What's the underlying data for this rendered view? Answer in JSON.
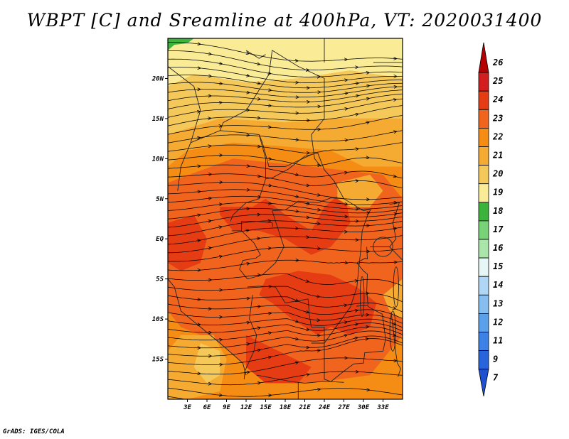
{
  "title": "WBPT [C] and Sreamline at 400hPa, VT: 2020031400",
  "footer": "GrADS: IGES/COLA",
  "map": {
    "lon_range": [
      0,
      36
    ],
    "lat_range": [
      -20,
      25
    ],
    "lat_ticks": [
      "20N",
      "15N",
      "10N",
      "5N",
      "EQ",
      "5S",
      "10S",
      "15S"
    ],
    "lon_ticks": [
      "3E",
      "6E",
      "9E",
      "12E",
      "15E",
      "18E",
      "21E",
      "24E",
      "27E",
      "30E",
      "33E"
    ]
  },
  "colorbar": {
    "labels": [
      "26",
      "25",
      "24",
      "23",
      "22",
      "21",
      "20",
      "19",
      "18",
      "17",
      "16",
      "15",
      "14",
      "13",
      "12",
      "11",
      "9",
      "7"
    ],
    "colors": [
      "#b40000",
      "#d21e1e",
      "#e63c14",
      "#f0641e",
      "#f58c14",
      "#f5aa32",
      "#f5c85a",
      "#faeb96",
      "#3cb43c",
      "#78d278",
      "#aae6aa",
      "#e6f5f5",
      "#afd7f5",
      "#87bef0",
      "#5aa0eb",
      "#3c82e6",
      "#2864dc",
      "#1e50d2"
    ]
  },
  "field": {
    "colors": {
      "c19": "#faeb96",
      "c20": "#f5c85a",
      "c21": "#f5aa32",
      "c22": "#f58c14",
      "c23": "#f0641e",
      "c24": "#e63c14",
      "c17": "#3cb43c"
    },
    "regions": [
      {
        "level": "c19",
        "pts": [
          [
            0,
            25
          ],
          [
            36,
            25
          ],
          [
            36,
            20
          ],
          [
            28,
            21
          ],
          [
            20,
            20
          ],
          [
            12,
            19.5
          ],
          [
            4,
            20.5
          ],
          [
            0,
            19
          ]
        ]
      },
      {
        "level": "c20",
        "pts": [
          [
            0,
            19
          ],
          [
            4,
            20.5
          ],
          [
            12,
            19.5
          ],
          [
            20,
            20
          ],
          [
            28,
            21
          ],
          [
            36,
            20
          ],
          [
            36,
            15
          ],
          [
            26,
            15
          ],
          [
            18,
            14.5
          ],
          [
            8,
            15
          ],
          [
            0,
            13
          ]
        ]
      },
      {
        "level": "c21",
        "pts": [
          [
            0,
            13
          ],
          [
            8,
            15
          ],
          [
            18,
            14.5
          ],
          [
            26,
            15
          ],
          [
            36,
            15
          ],
          [
            36,
            9
          ],
          [
            30,
            9
          ],
          [
            25,
            11
          ],
          [
            18,
            11.5
          ],
          [
            10,
            12
          ],
          [
            3,
            11
          ],
          [
            0,
            9
          ]
        ]
      },
      {
        "level": "c22",
        "pts": [
          [
            0,
            9
          ],
          [
            3,
            11
          ],
          [
            10,
            12
          ],
          [
            18,
            11.5
          ],
          [
            25,
            11
          ],
          [
            30,
            9
          ],
          [
            36,
            9
          ],
          [
            36,
            -20
          ],
          [
            0,
            -20
          ]
        ]
      },
      {
        "level": "c23",
        "pts": [
          [
            0,
            7
          ],
          [
            10,
            10
          ],
          [
            22,
            9
          ],
          [
            33,
            8
          ],
          [
            36,
            5
          ],
          [
            36,
            -12
          ],
          [
            31,
            -17
          ],
          [
            22,
            -18
          ],
          [
            15,
            -18
          ],
          [
            8,
            -13
          ],
          [
            2,
            -11
          ],
          [
            0,
            -9
          ]
        ]
      },
      {
        "level": "c24",
        "pts": [
          [
            8,
            4
          ],
          [
            13,
            4
          ],
          [
            15,
            5
          ],
          [
            18,
            3
          ],
          [
            22,
            1
          ],
          [
            24,
            4
          ],
          [
            27,
            6
          ],
          [
            28,
            2
          ],
          [
            25,
            -1
          ],
          [
            22,
            -2
          ],
          [
            18,
            0
          ],
          [
            14,
            1
          ],
          [
            10,
            1
          ],
          [
            8,
            3
          ]
        ]
      },
      {
        "level": "c24",
        "pts": [
          [
            15,
            -5
          ],
          [
            20,
            -4
          ],
          [
            25,
            -4.5
          ],
          [
            29,
            -6
          ],
          [
            32,
            -8
          ],
          [
            31,
            -11
          ],
          [
            28,
            -12
          ],
          [
            25,
            -11
          ],
          [
            23,
            -12
          ],
          [
            19,
            -10
          ],
          [
            16,
            -8
          ],
          [
            14,
            -7
          ]
        ]
      },
      {
        "level": "c24",
        "pts": [
          [
            12,
            -12
          ],
          [
            17,
            -14
          ],
          [
            22,
            -16
          ],
          [
            20,
            -18
          ],
          [
            15,
            -18
          ],
          [
            12,
            -16
          ]
        ]
      },
      {
        "level": "c24",
        "pts": [
          [
            0,
            2
          ],
          [
            4,
            3
          ],
          [
            6,
            0
          ],
          [
            5,
            -3
          ],
          [
            2,
            -4
          ],
          [
            0,
            -3
          ]
        ]
      },
      {
        "level": "c21",
        "pts": [
          [
            2,
            -12
          ],
          [
            7,
            -12
          ],
          [
            9,
            -15
          ],
          [
            8,
            -19
          ],
          [
            3,
            -20
          ],
          [
            0,
            -20
          ],
          [
            0,
            -14
          ]
        ]
      },
      {
        "level": "c20",
        "pts": [
          [
            5,
            -13
          ],
          [
            8,
            -14
          ],
          [
            8,
            -17
          ],
          [
            6,
            -18
          ],
          [
            4,
            -16
          ]
        ]
      },
      {
        "level": "c21",
        "pts": [
          [
            26,
            7
          ],
          [
            31,
            8
          ],
          [
            33,
            6
          ],
          [
            31,
            4
          ],
          [
            28,
            4
          ],
          [
            26,
            5
          ]
        ]
      },
      {
        "level": "c21",
        "pts": [
          [
            33,
            -7
          ],
          [
            36,
            -5
          ],
          [
            36,
            -10
          ],
          [
            34,
            -9
          ]
        ]
      },
      {
        "level": "c17",
        "pts": [
          [
            0,
            25
          ],
          [
            4,
            25
          ],
          [
            3,
            24.4
          ],
          [
            1,
            24.2
          ],
          [
            0,
            23.5
          ]
        ]
      }
    ]
  }
}
